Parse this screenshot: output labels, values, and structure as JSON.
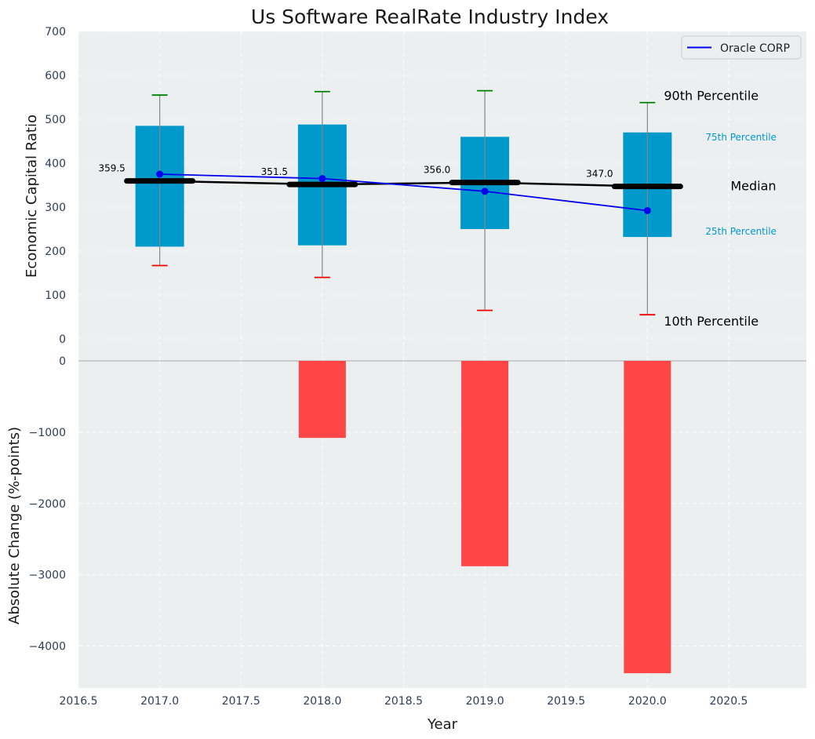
{
  "chart_data": [
    {
      "type": "box",
      "title": "Us Software RealRate Industry Index",
      "xlabel": "",
      "ylabel": "Economic Capital Ratio",
      "ylim": [
        0,
        700
      ],
      "yticks": [
        "0",
        "100",
        "200",
        "300",
        "400",
        "500",
        "600",
        "700"
      ],
      "grid": true,
      "legend": {
        "position": "top-right",
        "entries": [
          "Oracle CORP"
        ]
      },
      "categories": [
        2017,
        2018,
        2019,
        2020
      ],
      "p10": [
        167,
        140,
        65,
        55
      ],
      "p25": [
        210,
        213,
        250,
        232
      ],
      "median": [
        359.5,
        351.5,
        356.0,
        347.0
      ],
      "median_labels": [
        "359.5",
        "351.5",
        "356.0",
        "347.0"
      ],
      "p75": [
        485,
        488,
        460,
        470
      ],
      "p90": [
        555,
        563,
        565,
        538
      ],
      "series": [
        {
          "name": "Oracle CORP",
          "values": [
            375,
            365,
            336,
            292
          ]
        }
      ],
      "annotations": {
        "p90": "90th Percentile",
        "p75": "75th Percentile",
        "median": "Median",
        "p25": "25th Percentile",
        "p10": "10th Percentile"
      }
    },
    {
      "type": "bar",
      "xlabel": "Year",
      "ylabel": "Absolute Change (%-points)",
      "ylim": [
        -4600,
        0
      ],
      "yticks": [
        "0",
        "−1000",
        "−2000",
        "−3000",
        "−4000"
      ],
      "xlim": [
        2016.5,
        2021
      ],
      "xticks": [
        "2016.5",
        "2017.0",
        "2017.5",
        "2018.0",
        "2018.5",
        "2019.0",
        "2019.5",
        "2020.0",
        "2020.5"
      ],
      "categories": [
        2017,
        2018,
        2019,
        2020
      ],
      "values": [
        0,
        -1080,
        -2880,
        -4380
      ],
      "grid": true
    }
  ],
  "colors": {
    "panel": "#ebeff0",
    "box": "#0099cc",
    "median": "#000000",
    "series": "#0000ee",
    "bar": "#ff3c3c",
    "p90_cap": "#008000",
    "p10_cap": "#ee0000",
    "whisker": "#888888",
    "tick_text": "#2f3e55"
  }
}
